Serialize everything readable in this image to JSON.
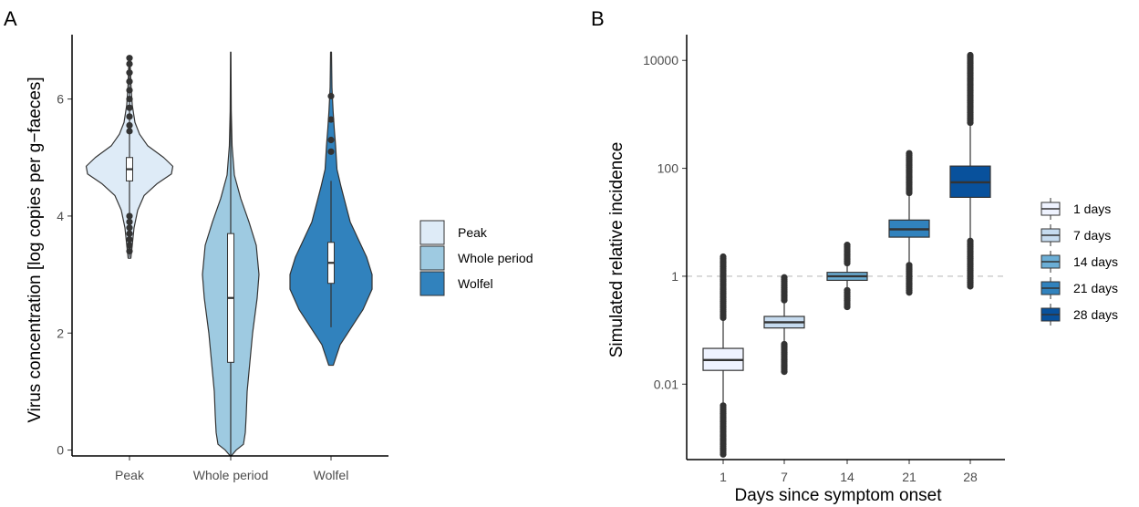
{
  "colors": {
    "peak": "#deebf7",
    "whole_period": "#9ecae1",
    "wolfel": "#3182bd",
    "outline": "#333333",
    "ref_line": "#bdbdbd"
  },
  "chart_data": [
    {
      "type": "violin",
      "panel_label": "A",
      "title": "",
      "xlabel": "",
      "ylabel": "Virus concentration [log copies per g−faeces]",
      "ylim": [
        -0.1,
        7.1
      ],
      "yticks": [
        0,
        2,
        4,
        6
      ],
      "grid": false,
      "legend_position": "right",
      "legend": [
        "Peak",
        "Whole period",
        "Wolfel"
      ],
      "categories": [
        "Peak",
        "Whole period",
        "Wolfel"
      ],
      "series": [
        {
          "name": "Peak",
          "color": "#deebf7",
          "density_profile": [
            [
              3.28,
              0.03
            ],
            [
              3.5,
              0.06
            ],
            [
              3.8,
              0.1
            ],
            [
              4.1,
              0.18
            ],
            [
              4.35,
              0.32
            ],
            [
              4.55,
              0.6
            ],
            [
              4.72,
              0.92
            ],
            [
              4.85,
              0.95
            ],
            [
              5.0,
              0.75
            ],
            [
              5.2,
              0.4
            ],
            [
              5.4,
              0.22
            ],
            [
              5.6,
              0.12
            ],
            [
              5.9,
              0.06
            ],
            [
              6.2,
              0.035
            ],
            [
              6.5,
              0.02
            ],
            [
              6.72,
              0.01
            ]
          ],
          "box": {
            "q1": 4.6,
            "median": 4.8,
            "q3": 5.0,
            "whisker_low": 3.3,
            "whisker_high": 6.7
          },
          "outliers": [
            6.7,
            6.6,
            6.45,
            6.3,
            6.15,
            6.0,
            5.85,
            5.7,
            5.55,
            5.45,
            4.0,
            3.9,
            3.8,
            3.7,
            3.6,
            3.5,
            3.4
          ]
        },
        {
          "name": "Whole period",
          "color": "#9ecae1",
          "density_profile": [
            [
              -0.1,
              0.01
            ],
            [
              0.0,
              0.12
            ],
            [
              0.1,
              0.28
            ],
            [
              0.3,
              0.32
            ],
            [
              0.6,
              0.34
            ],
            [
              1.0,
              0.36
            ],
            [
              1.5,
              0.42
            ],
            [
              2.0,
              0.48
            ],
            [
              2.6,
              0.58
            ],
            [
              3.0,
              0.62
            ],
            [
              3.5,
              0.56
            ],
            [
              3.9,
              0.4
            ],
            [
              4.3,
              0.22
            ],
            [
              4.7,
              0.08
            ],
            [
              5.2,
              0.03
            ],
            [
              5.8,
              0.012
            ],
            [
              6.8,
              0.004
            ]
          ],
          "box": {
            "q1": 1.5,
            "median": 2.6,
            "q3": 3.7,
            "whisker_low": -0.1,
            "whisker_high": 6.8
          },
          "outliers": []
        },
        {
          "name": "Wolfel",
          "color": "#3182bd",
          "density_profile": [
            [
              1.45,
              0.05
            ],
            [
              1.8,
              0.2
            ],
            [
              2.1,
              0.45
            ],
            [
              2.4,
              0.7
            ],
            [
              2.75,
              0.9
            ],
            [
              3.0,
              0.9
            ],
            [
              3.3,
              0.78
            ],
            [
              3.6,
              0.6
            ],
            [
              3.9,
              0.42
            ],
            [
              4.2,
              0.32
            ],
            [
              4.5,
              0.22
            ],
            [
              4.8,
              0.13
            ],
            [
              5.2,
              0.1
            ],
            [
              5.5,
              0.07
            ],
            [
              5.8,
              0.045
            ],
            [
              6.2,
              0.02
            ],
            [
              6.8,
              0.01
            ]
          ],
          "box": {
            "q1": 2.85,
            "median": 3.2,
            "q3": 3.55,
            "whisker_low": 2.1,
            "whisker_high": 4.6
          },
          "outliers": [
            6.05,
            5.65,
            5.3,
            5.1
          ]
        }
      ]
    },
    {
      "type": "box",
      "panel_label": "B",
      "title": "",
      "xlabel": "Days since symptom onset",
      "ylabel": "Simulated relative incidence",
      "y_scale": "log10",
      "ylim": [
        0.0004,
        30000
      ],
      "yticks": [
        0.01,
        1,
        100,
        10000
      ],
      "ytick_labels": [
        "0.01",
        "1",
        "100",
        "10000"
      ],
      "reference_line_y": 1,
      "grid": false,
      "legend_position": "right",
      "categories": [
        "1",
        "7",
        "14",
        "21",
        "28"
      ],
      "series": [
        {
          "name": "1 days",
          "color": "#eff3ff",
          "box": {
            "q1": 0.018,
            "median": 0.028,
            "q3": 0.046,
            "whisker_low": 0.004,
            "whisker_high": 0.17
          },
          "outlier_range": [
            0.0005,
            2.3
          ],
          "outlier_gap": [
            0.004,
            0.17
          ]
        },
        {
          "name": "7 days",
          "color": "#c6dbef",
          "box": {
            "q1": 0.11,
            "median": 0.14,
            "q3": 0.18,
            "whisker_low": 0.055,
            "whisker_high": 0.36
          },
          "outlier_range": [
            0.017,
            0.95
          ],
          "outlier_gap": [
            0.055,
            0.36
          ]
        },
        {
          "name": "14 days",
          "color": "#6baed6",
          "box": {
            "q1": 0.84,
            "median": 1.0,
            "q3": 1.18,
            "whisker_low": 0.55,
            "whisker_high": 1.75
          },
          "outlier_range": [
            0.27,
            3.8
          ],
          "outlier_gap": [
            0.55,
            1.75
          ]
        },
        {
          "name": "21 days",
          "color": "#3182bd",
          "box": {
            "q1": 5.3,
            "median": 7.4,
            "q3": 11.0,
            "whisker_low": 1.6,
            "whisker_high": 35
          },
          "outlier_range": [
            0.5,
            190
          ],
          "outlier_gap": [
            1.6,
            35
          ]
        },
        {
          "name": "28 days",
          "color": "#08519c",
          "box": {
            "q1": 29,
            "median": 55,
            "q3": 110,
            "whisker_low": 4.5,
            "whisker_high": 700
          },
          "outlier_range": [
            0.65,
            12500
          ],
          "outlier_gap": [
            4.5,
            700
          ]
        }
      ]
    }
  ]
}
